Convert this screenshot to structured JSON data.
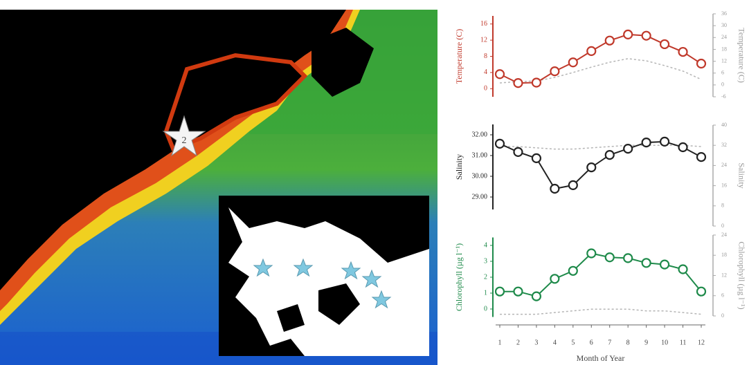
{
  "map": {
    "site_label": "2"
  },
  "chart_data": [
    {
      "type": "line",
      "ylabel": "Temperature (C)",
      "y2label": "Temperature (C)",
      "color": "#c0392b",
      "x": [
        1,
        2,
        3,
        4,
        5,
        6,
        7,
        8,
        9,
        10,
        11,
        12
      ],
      "xlim": [
        0.6,
        12.4
      ],
      "ylim": [
        -2,
        18
      ],
      "yticks": [
        0,
        4,
        8,
        12,
        16
      ],
      "y2lim": [
        -6,
        36
      ],
      "y2ticks": [
        -6,
        0,
        6,
        12,
        18,
        24,
        30,
        36
      ],
      "series": [
        {
          "color": "#c0392b",
          "values": [
            3.6,
            1.4,
            1.5,
            4.3,
            6.5,
            9.3,
            11.9,
            13.4,
            13.1,
            11,
            9.1,
            6.2
          ]
        },
        {
          "color": "#b5b5b5",
          "axis": "y2",
          "values": [
            1,
            1.7,
            2,
            3.8,
            6.3,
            9,
            11.5,
            13.3,
            12.2,
            9.8,
            7,
            2.8
          ]
        }
      ]
    },
    {
      "type": "line",
      "ylabel": "Salinity",
      "y2label": "Salinity",
      "color": "#222222",
      "x": [
        1,
        2,
        3,
        4,
        5,
        6,
        7,
        8,
        9,
        10,
        11,
        12
      ],
      "xlim": [
        0.6,
        12.4
      ],
      "ylim": [
        28.4,
        32.5
      ],
      "yticks": [
        {
          "value": 29,
          "label": "29.00"
        },
        {
          "value": 30,
          "label": "30.00"
        },
        {
          "value": 31,
          "label": "31.00"
        },
        {
          "value": 32,
          "label": "32.00"
        }
      ],
      "y2lim": [
        0,
        40
      ],
      "y2ticks": [
        0,
        8,
        16,
        24,
        32,
        40
      ],
      "series": [
        {
          "color": "#222222",
          "values": [
            31.57,
            31.17,
            30.87,
            29.4,
            29.57,
            30.43,
            31.03,
            31.33,
            31.63,
            31.67,
            31.4,
            30.93
          ]
        },
        {
          "color": "#b5b5b5",
          "axis": "y2",
          "values": [
            31.5,
            31.5,
            31,
            30.5,
            30.5,
            31,
            31.5,
            32,
            32,
            32,
            32,
            31.5
          ]
        }
      ]
    },
    {
      "type": "line",
      "ylabel": "Chlorophyll (µg l⁻¹)",
      "y2label": "Chlorophyll (µg l⁻¹)",
      "color": "#1e8a4a",
      "x": [
        1,
        2,
        3,
        4,
        5,
        6,
        7,
        8,
        9,
        10,
        11,
        12
      ],
      "xlim": [
        0.6,
        12.4
      ],
      "xticks": [
        1,
        2,
        3,
        4,
        5,
        6,
        7,
        8,
        9,
        10,
        11,
        12
      ],
      "xlabel": "Month of Year",
      "ylim": [
        -0.5,
        4.5
      ],
      "yticks": [
        0,
        1,
        2,
        3,
        4
      ],
      "y2lim": [
        0,
        24
      ],
      "y2ticks": [
        0,
        6,
        12,
        18,
        24
      ],
      "series": [
        {
          "color": "#1e8a4a",
          "values": [
            1.1,
            1.1,
            0.8,
            1.9,
            2.4,
            3.5,
            3.25,
            3.2,
            2.9,
            2.8,
            2.5,
            1.1
          ]
        },
        {
          "color": "#b5b5b5",
          "axis": "y2",
          "values": [
            0.5,
            0.5,
            0.5,
            1,
            1.5,
            2,
            2,
            2,
            1.5,
            1.5,
            1,
            0.5
          ]
        }
      ]
    }
  ]
}
